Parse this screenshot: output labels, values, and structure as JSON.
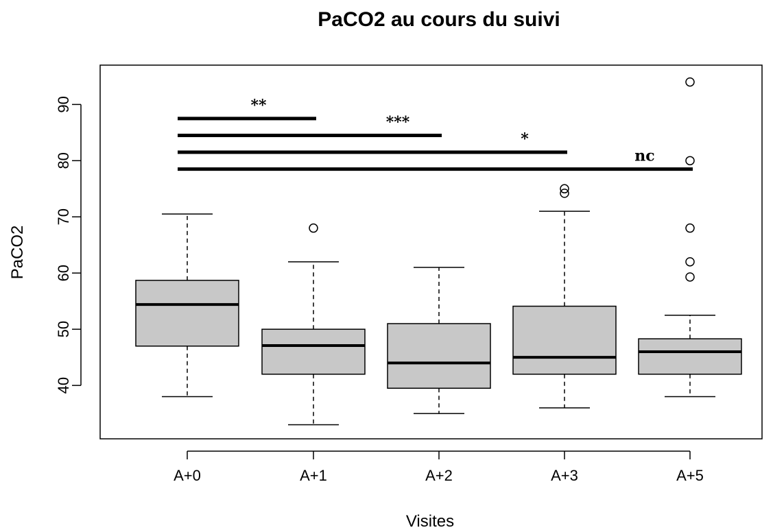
{
  "chart_data": {
    "type": "box",
    "title": "PaCO2 au cours du suivi",
    "xlabel": "Visites",
    "ylabel": "PaCO2",
    "ylim": [
      30.5,
      97
    ],
    "yticks": [
      40,
      50,
      60,
      70,
      80,
      90
    ],
    "grid": false,
    "legend": "none",
    "categories": [
      "A+0",
      "A+1",
      "A+2",
      "A+3",
      "A+5"
    ],
    "boxes": [
      {
        "category": "A+0",
        "whisker_low": 38,
        "q1": 47,
        "median": 54.4,
        "q3": 58.7,
        "whisker_high": 70.5,
        "outliers": []
      },
      {
        "category": "A+1",
        "whisker_low": 33,
        "q1": 42,
        "median": 47.1,
        "q3": 50,
        "whisker_high": 62,
        "outliers": [
          68
        ]
      },
      {
        "category": "A+2",
        "whisker_low": 35,
        "q1": 39.5,
        "median": 44,
        "q3": 51,
        "whisker_high": 61,
        "outliers": []
      },
      {
        "category": "A+3",
        "whisker_low": 36,
        "q1": 42,
        "median": 45,
        "q3": 54.1,
        "whisker_high": 71,
        "outliers": [
          74.2,
          75
        ]
      },
      {
        "category": "A+5",
        "whisker_low": 38,
        "q1": 42,
        "median": 46,
        "q3": 48.3,
        "whisker_high": 52.5,
        "outliers": [
          59.3,
          62,
          68,
          80,
          94
        ]
      }
    ],
    "significance": [
      {
        "from": "A+0",
        "to": "A+1",
        "y": 87.5,
        "label": "**"
      },
      {
        "from": "A+0",
        "to": "A+2",
        "y": 84.5,
        "label": "***"
      },
      {
        "from": "A+0",
        "to": "A+3",
        "y": 81.5,
        "label": "*"
      },
      {
        "from": "A+0",
        "to": "A+5",
        "y": 78.5,
        "label": "nc"
      }
    ],
    "colors": {
      "box_fill": "#c8c8c8",
      "stroke": "#000000"
    }
  }
}
